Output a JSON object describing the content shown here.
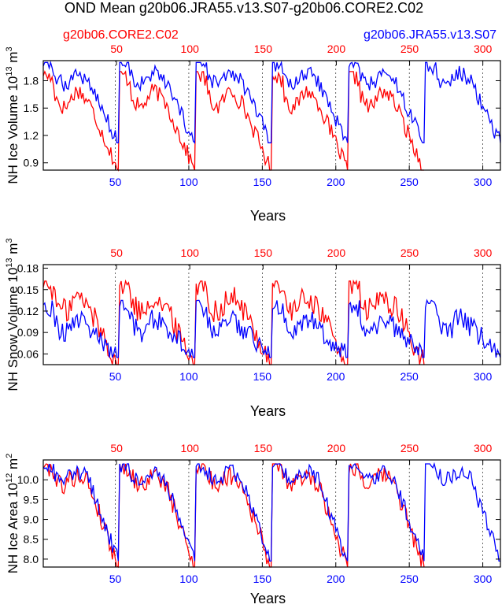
{
  "title": "OND Mean g20b06.JRA55.v13.S07-g20b06.CORE2.C02",
  "legend": {
    "red_label": "g20b06.CORE2.C02",
    "blue_label": "g20b06.JRA55.v13.S07"
  },
  "colors": {
    "red": "#ff0000",
    "blue": "#0000ff",
    "axis": "#000000"
  },
  "chart_data": [
    {
      "type": "line",
      "id": "ice-volume",
      "ylabel": "NH Ice Volume 10",
      "ylabel_exp": "13",
      "ylabel_unit": "m",
      "ylabel_unit_exp": "3",
      "xlabel": "Years",
      "xlim": [
        1,
        312
      ],
      "ylim": [
        0.82,
        2.02
      ],
      "yticks": [
        "0.9",
        "1.2",
        "1.5",
        "1.8"
      ],
      "xticks_bottom": [
        "50",
        "100",
        "150",
        "200",
        "250",
        "300"
      ],
      "xticks_top": [
        "50",
        "100",
        "150",
        "200",
        "250",
        "300"
      ],
      "cycle_length": 52,
      "series": [
        {
          "name": "g20b06.CORE2.C02",
          "color": "red",
          "length": 260,
          "max": 1.9,
          "min": 0.82,
          "plateau": 1.6,
          "noise": 0.09
        },
        {
          "name": "g20b06.JRA55.v13.S07",
          "color": "blue",
          "length": 312,
          "max": 2.0,
          "min": 1.12,
          "plateau": 1.82,
          "noise": 0.09
        }
      ]
    },
    {
      "type": "line",
      "id": "snow-volume",
      "ylabel": "NH Snow Volume 10",
      "ylabel_exp": "13",
      "ylabel_unit": "m",
      "ylabel_unit_exp": "3",
      "xlabel": "Years",
      "xlim": [
        1,
        312
      ],
      "ylim": [
        0.045,
        0.185
      ],
      "yticks": [
        "0.06",
        "0.09",
        "0.12",
        "0.15",
        "0.18"
      ],
      "xticks_bottom": [
        "50",
        "100",
        "150",
        "200",
        "250",
        "300"
      ],
      "xticks_top": [
        "50",
        "100",
        "150",
        "200",
        "250",
        "300"
      ],
      "cycle_length": 52,
      "series": [
        {
          "name": "g20b06.CORE2.C02",
          "color": "red",
          "length": 260,
          "max": 0.162,
          "min": 0.045,
          "plateau": 0.13,
          "noise": 0.018
        },
        {
          "name": "g20b06.JRA55.v13.S07",
          "color": "blue",
          "length": 312,
          "max": 0.135,
          "min": 0.055,
          "plateau": 0.1,
          "noise": 0.015
        }
      ]
    },
    {
      "type": "line",
      "id": "ice-area",
      "ylabel": "NH Ice Area 10",
      "ylabel_exp": "12",
      "ylabel_unit": "m",
      "ylabel_unit_exp": "2",
      "xlabel": "Years",
      "xlim": [
        1,
        312
      ],
      "ylim": [
        7.8,
        10.5
      ],
      "yticks": [
        "8.0",
        "8.5",
        "9.0",
        "9.5",
        "10.0"
      ],
      "xticks_bottom": [
        "50",
        "100",
        "150",
        "200",
        "250",
        "300"
      ],
      "xticks_top": [
        "50",
        "100",
        "150",
        "200",
        "250",
        "300"
      ],
      "cycle_length": 52,
      "series": [
        {
          "name": "g20b06.CORE2.C02",
          "color": "red",
          "length": 260,
          "max": 10.4,
          "min": 7.8,
          "plateau": 10.0,
          "noise": 0.25
        },
        {
          "name": "g20b06.JRA55.v13.S07",
          "color": "blue",
          "length": 312,
          "max": 10.4,
          "min": 7.95,
          "plateau": 10.1,
          "noise": 0.2
        }
      ]
    }
  ]
}
